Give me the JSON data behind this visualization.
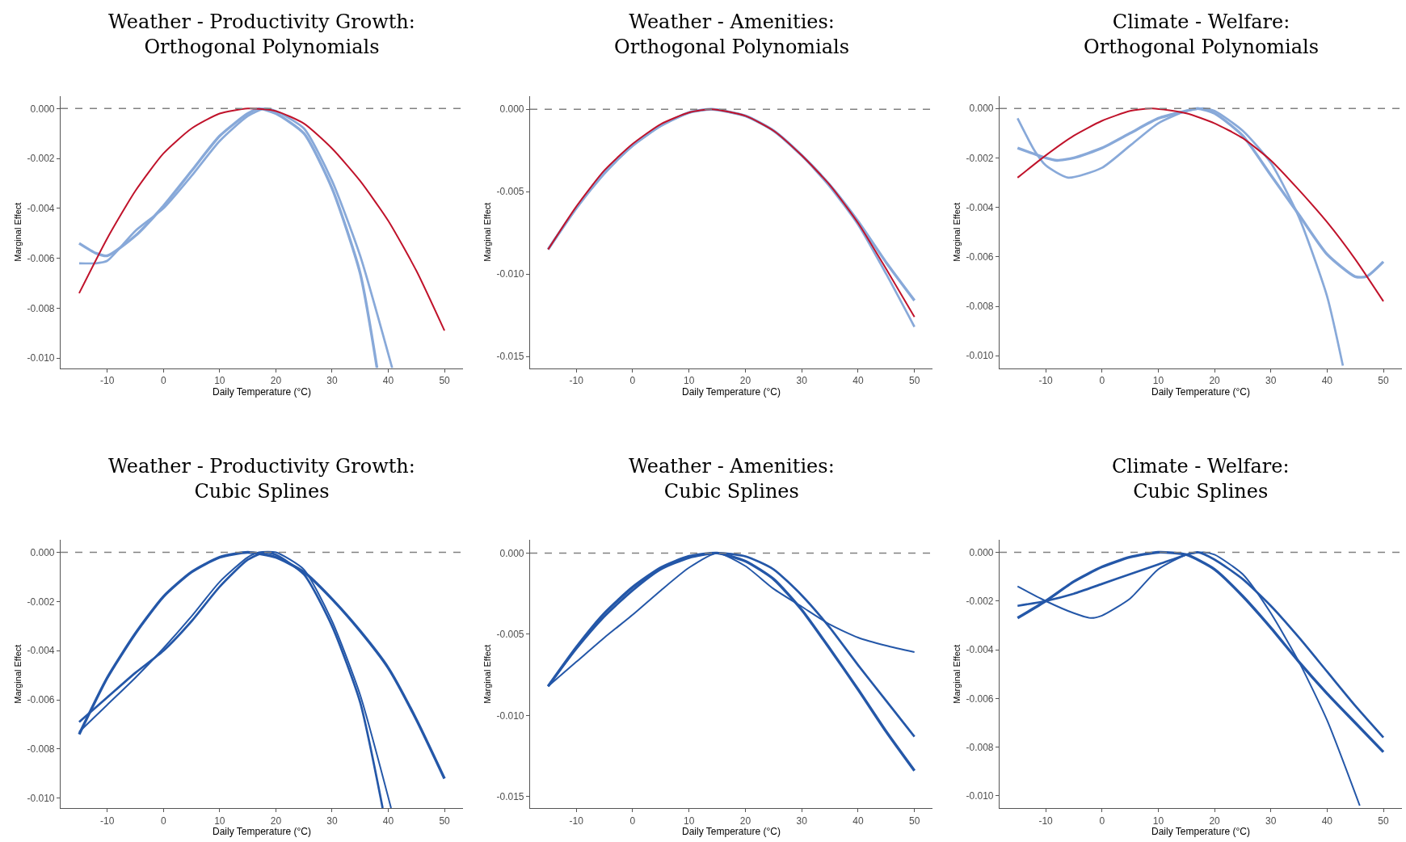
{
  "chart_data": [
    {
      "type": "line",
      "title": "Weather - Productivity Growth:\nOrthogonal Polynomials",
      "xlabel": "Daily Temperature (°C)",
      "ylabel": "Marginal Effect",
      "xlim": [
        -18.3,
        53.3
      ],
      "ylim": [
        -0.0104,
        0.0005
      ],
      "xticks": [
        -10,
        0,
        10,
        20,
        30,
        40,
        50
      ],
      "yticks": [
        {
          "value": 0,
          "label": "0.000"
        },
        {
          "value": -0.002,
          "label": "-0.002"
        },
        {
          "value": -0.004,
          "label": "-0.004"
        },
        {
          "value": -0.006,
          "label": "-0.006"
        },
        {
          "value": -0.008,
          "label": "-0.008"
        },
        {
          "value": -0.01,
          "label": "-0.010"
        }
      ],
      "ref_lines": [
        {
          "axis": "y",
          "value": 0,
          "color": "#808080",
          "line_style": "dashed"
        }
      ],
      "series": [
        {
          "color": "#88a9d9",
          "x": [
            -15,
            -12,
            -10,
            -5,
            0,
            5,
            10,
            15,
            17,
            20,
            25,
            30,
            35,
            38
          ],
          "values": [
            -0.0054,
            -0.0058,
            -0.0059,
            -0.0051,
            -0.0039,
            -0.0025,
            -0.0011,
            -0.0002,
            0,
            -0.0002,
            -0.001,
            -0.0032,
            -0.0066,
            -0.0104
          ]
        },
        {
          "color": "#88a9d9",
          "x": [
            -15,
            -12,
            -10,
            -5,
            0,
            5,
            10,
            15,
            18,
            20,
            25,
            30,
            35,
            40.7
          ],
          "values": [
            -0.0062,
            -0.0062,
            -0.0061,
            -0.0049,
            -0.004,
            -0.0027,
            -0.0013,
            -0.0003,
            0,
            -0.0001,
            -0.0008,
            -0.0029,
            -0.0059,
            -0.0104
          ]
        },
        {
          "color": "#c0132b",
          "x": [
            -15,
            -10,
            -5,
            0,
            5,
            10,
            15,
            20,
            25,
            30,
            35,
            40,
            45,
            50
          ],
          "values": [
            -0.0074,
            -0.0052,
            -0.0033,
            -0.0018,
            -0.0008,
            -0.0002,
            0,
            -0.0001,
            -0.0006,
            -0.0016,
            -0.0029,
            -0.0045,
            -0.0065,
            -0.0089
          ]
        }
      ]
    },
    {
      "type": "line",
      "title": "Weather - Amenities:\nOrthogonal Polynomials",
      "xlabel": "Daily Temperature (°C)",
      "ylabel": "Marginal Effect",
      "xlim": [
        -18.2,
        53.2
      ],
      "ylim": [
        -0.0157,
        0.0008
      ],
      "xticks": [
        -10,
        0,
        10,
        20,
        30,
        40,
        50
      ],
      "yticks": [
        {
          "value": 0,
          "label": "0.000"
        },
        {
          "value": -0.005,
          "label": "-0.005"
        },
        {
          "value": -0.01,
          "label": "-0.010"
        },
        {
          "value": -0.015,
          "label": "-0.015"
        }
      ],
      "ref_lines": [
        {
          "axis": "y",
          "value": 0,
          "color": "#808080",
          "line_style": "dashed"
        }
      ],
      "series": [
        {
          "color": "#88a9d9",
          "x": [
            -15,
            -10,
            -5,
            0,
            5,
            10,
            14,
            20,
            25,
            30,
            35,
            40,
            45,
            50
          ],
          "values": [
            -0.0085,
            -0.006,
            -0.0038,
            -0.0022,
            -0.001,
            -0.0002,
            0,
            -0.0004,
            -0.0013,
            -0.0028,
            -0.0046,
            -0.0068,
            -0.0093,
            -0.0116
          ]
        },
        {
          "color": "#88a9d9",
          "x": [
            -15,
            -10,
            -5,
            0,
            5,
            10,
            14,
            20,
            25,
            30,
            35,
            40,
            45,
            50
          ],
          "values": [
            -0.0085,
            -0.006,
            -0.0039,
            -0.0022,
            -0.001,
            -0.0002,
            0,
            -0.0004,
            -0.0013,
            -0.0028,
            -0.0047,
            -0.007,
            -0.01,
            -0.0132
          ]
        },
        {
          "color": "#c0132b",
          "x": [
            -15,
            -10,
            -5,
            0,
            5,
            10,
            14,
            20,
            25,
            30,
            35,
            40,
            45,
            50
          ],
          "values": [
            -0.0085,
            -0.0059,
            -0.0037,
            -0.0021,
            -0.0009,
            -0.0002,
            0,
            -0.0004,
            -0.0013,
            -0.0028,
            -0.0046,
            -0.0069,
            -0.0097,
            -0.0126
          ]
        }
      ]
    },
    {
      "type": "line",
      "title": "Climate - Welfare:\nOrthogonal Polynomials",
      "xlabel": "Daily Temperature (°C)",
      "ylabel": "Marginal Effect",
      "xlim": [
        -18.2,
        53.3
      ],
      "ylim": [
        -0.0105,
        0.0005
      ],
      "xticks": [
        -10,
        0,
        10,
        20,
        30,
        40,
        50
      ],
      "yticks": [
        {
          "value": 0,
          "label": "0.000"
        },
        {
          "value": -0.002,
          "label": "-0.002"
        },
        {
          "value": -0.004,
          "label": "-0.004"
        },
        {
          "value": -0.006,
          "label": "-0.006"
        },
        {
          "value": -0.008,
          "label": "-0.008"
        },
        {
          "value": -0.01,
          "label": "-0.010"
        }
      ],
      "ref_lines": [
        {
          "axis": "y",
          "value": 0,
          "color": "#808080",
          "line_style": "dashed"
        }
      ],
      "series": [
        {
          "color": "#88a9d9",
          "x": [
            -15,
            -10,
            -8,
            -5,
            0,
            5,
            10,
            15,
            17,
            20,
            25,
            30,
            35,
            40,
            45,
            47,
            50
          ],
          "values": [
            -0.0016,
            -0.002,
            -0.0021,
            -0.002,
            -0.0016,
            -0.001,
            -0.0004,
            -0.0001,
            0,
            -0.0002,
            -0.0011,
            -0.0027,
            -0.0043,
            -0.0059,
            -0.0068,
            -0.0068,
            -0.0062
          ]
        },
        {
          "color": "#88a9d9",
          "x": [
            -15,
            -12,
            -10,
            -6,
            0,
            5,
            10,
            15,
            18,
            20,
            25,
            30,
            35,
            40,
            42.8
          ],
          "values": [
            -0.0004,
            -0.0017,
            -0.0023,
            -0.0028,
            -0.0024,
            -0.0015,
            -0.0006,
            -0.0001,
            0,
            -0.0001,
            -0.0009,
            -0.0022,
            -0.0044,
            -0.0076,
            -0.0104
          ]
        },
        {
          "color": "#c0132b",
          "x": [
            -15,
            -10,
            -5,
            0,
            5,
            9,
            15,
            20,
            25,
            30,
            35,
            40,
            45,
            50
          ],
          "values": [
            -0.0028,
            -0.0019,
            -0.0011,
            -0.0005,
            -0.0001,
            0,
            -0.0002,
            -0.0006,
            -0.0012,
            -0.0021,
            -0.0033,
            -0.0046,
            -0.0061,
            -0.0078
          ]
        }
      ]
    },
    {
      "type": "line",
      "title": "Weather - Productivity Growth:\nCubic Splines",
      "xlabel": "Daily Temperature (°C)",
      "ylabel": "Marginal Effect",
      "xlim": [
        -18.3,
        53.3
      ],
      "ylim": [
        -0.0104,
        0.0005
      ],
      "xticks": [
        -10,
        0,
        10,
        20,
        30,
        40,
        50
      ],
      "yticks": [
        {
          "value": 0,
          "label": "0.000"
        },
        {
          "value": -0.002,
          "label": "-0.002"
        },
        {
          "value": -0.004,
          "label": "-0.004"
        },
        {
          "value": -0.006,
          "label": "-0.006"
        },
        {
          "value": -0.008,
          "label": "-0.008"
        },
        {
          "value": -0.01,
          "label": "-0.010"
        }
      ],
      "ref_lines": [
        {
          "axis": "y",
          "value": 0,
          "color": "#808080",
          "line_style": "dashed"
        }
      ],
      "series": [
        {
          "color": "#2457a8",
          "x": [
            -15,
            -10,
            -5,
            0,
            5,
            10,
            15,
            20,
            25,
            30,
            35,
            40,
            45,
            50
          ],
          "values": [
            -0.0074,
            -0.0051,
            -0.0033,
            -0.0018,
            -0.0008,
            -0.0002,
            0,
            -0.0002,
            -0.0008,
            -0.0019,
            -0.0032,
            -0.0047,
            -0.0068,
            -0.0092
          ]
        },
        {
          "color": "#2457a8",
          "x": [
            -15,
            -10,
            -5,
            0,
            5,
            10,
            15,
            18,
            20,
            25,
            30,
            35,
            39
          ],
          "values": [
            -0.0069,
            -0.0059,
            -0.0049,
            -0.004,
            -0.0028,
            -0.0014,
            -0.0003,
            0,
            -0.0001,
            -0.0009,
            -0.003,
            -0.0061,
            -0.0104
          ]
        },
        {
          "color": "#2457a8",
          "x": [
            -15,
            -10,
            -5,
            0,
            5,
            10,
            15,
            17,
            20,
            25,
            30,
            35,
            40.5
          ],
          "values": [
            -0.0073,
            -0.0062,
            -0.0051,
            -0.0039,
            -0.0026,
            -0.0012,
            -0.0002,
            0,
            0,
            -0.0007,
            -0.0028,
            -0.0058,
            -0.0104
          ]
        }
      ]
    },
    {
      "type": "line",
      "title": "Weather - Amenities:\nCubic Splines",
      "xlabel": "Daily Temperature (°C)",
      "ylabel": "Marginal Effect",
      "xlim": [
        -18.2,
        53.2
      ],
      "ylim": [
        -0.0157,
        0.0008
      ],
      "xticks": [
        -10,
        0,
        10,
        20,
        30,
        40,
        50
      ],
      "yticks": [
        {
          "value": 0,
          "label": "0.000"
        },
        {
          "value": -0.005,
          "label": "-0.005"
        },
        {
          "value": -0.01,
          "label": "-0.010"
        },
        {
          "value": -0.015,
          "label": "-0.015"
        }
      ],
      "ref_lines": [
        {
          "axis": "y",
          "value": 0,
          "color": "#808080",
          "line_style": "dashed"
        }
      ],
      "series": [
        {
          "color": "#2457a8",
          "x": [
            -15,
            -10,
            -5,
            0,
            5,
            10,
            15,
            20,
            25,
            30,
            35,
            40,
            45,
            50
          ],
          "values": [
            -0.0082,
            -0.0058,
            -0.0037,
            -0.0021,
            -0.0009,
            -0.0002,
            0,
            -0.0005,
            -0.0016,
            -0.0035,
            -0.0059,
            -0.0084,
            -0.011,
            -0.0134
          ]
        },
        {
          "color": "#2457a8",
          "x": [
            -15,
            -10,
            -5,
            0,
            5,
            10,
            15,
            20,
            25,
            30,
            35,
            40,
            45,
            50
          ],
          "values": [
            -0.0082,
            -0.0059,
            -0.0039,
            -0.0023,
            -0.001,
            -0.0003,
            0,
            -0.0002,
            -0.001,
            -0.0026,
            -0.0046,
            -0.0069,
            -0.0091,
            -0.0113
          ]
        },
        {
          "color": "#2457a8",
          "x": [
            -15,
            -10,
            -5,
            0,
            5,
            10,
            15,
            20,
            25,
            30,
            35,
            40,
            45,
            50
          ],
          "values": [
            -0.0082,
            -0.0067,
            -0.0052,
            -0.0038,
            -0.0023,
            -0.0009,
            0,
            -0.0008,
            -0.0022,
            -0.0033,
            -0.0044,
            -0.0052,
            -0.0057,
            -0.0061
          ]
        }
      ]
    },
    {
      "type": "line",
      "title": "Climate - Welfare:\nCubic Splines",
      "xlabel": "Daily Temperature (°C)",
      "ylabel": "Marginal Effect",
      "xlim": [
        -18.2,
        53.3
      ],
      "ylim": [
        -0.0105,
        0.0005
      ],
      "xticks": [
        -10,
        0,
        10,
        20,
        30,
        40,
        50
      ],
      "yticks": [
        {
          "value": 0,
          "label": "0.000"
        },
        {
          "value": -0.002,
          "label": "-0.002"
        },
        {
          "value": -0.004,
          "label": "-0.004"
        },
        {
          "value": -0.006,
          "label": "-0.006"
        },
        {
          "value": -0.008,
          "label": "-0.008"
        },
        {
          "value": -0.01,
          "label": "-0.010"
        }
      ],
      "ref_lines": [
        {
          "axis": "y",
          "value": 0,
          "color": "#808080",
          "line_style": "dashed"
        }
      ],
      "series": [
        {
          "color": "#2457a8",
          "x": [
            -15,
            -10,
            -5,
            0,
            5,
            10,
            15,
            20,
            25,
            30,
            35,
            40,
            45,
            50
          ],
          "values": [
            -0.0027,
            -0.002,
            -0.0012,
            -0.0006,
            -0.0002,
            0,
            -0.0001,
            -0.0007,
            -0.0018,
            -0.0031,
            -0.0045,
            -0.0058,
            -0.007,
            -0.0082
          ]
        },
        {
          "color": "#2457a8",
          "x": [
            -15,
            -10,
            -5,
            0,
            5,
            10,
            15,
            17,
            20,
            25,
            30,
            35,
            40,
            45,
            50
          ],
          "values": [
            -0.0022,
            -0.002,
            -0.0017,
            -0.0013,
            -0.0009,
            -0.0005,
            -0.0001,
            0,
            -0.0003,
            -0.0011,
            -0.0022,
            -0.0035,
            -0.0049,
            -0.0063,
            -0.0076
          ]
        },
        {
          "color": "#2457a8",
          "x": [
            -15,
            -10,
            -5,
            -2,
            0,
            5,
            10,
            15,
            18,
            20,
            25,
            30,
            35,
            40,
            45.8
          ],
          "values": [
            -0.0014,
            -0.002,
            -0.0025,
            -0.0027,
            -0.0026,
            -0.0019,
            -0.0007,
            -0.0001,
            0,
            -0.0001,
            -0.0009,
            -0.0025,
            -0.0045,
            -0.0069,
            -0.0104
          ]
        }
      ]
    }
  ]
}
